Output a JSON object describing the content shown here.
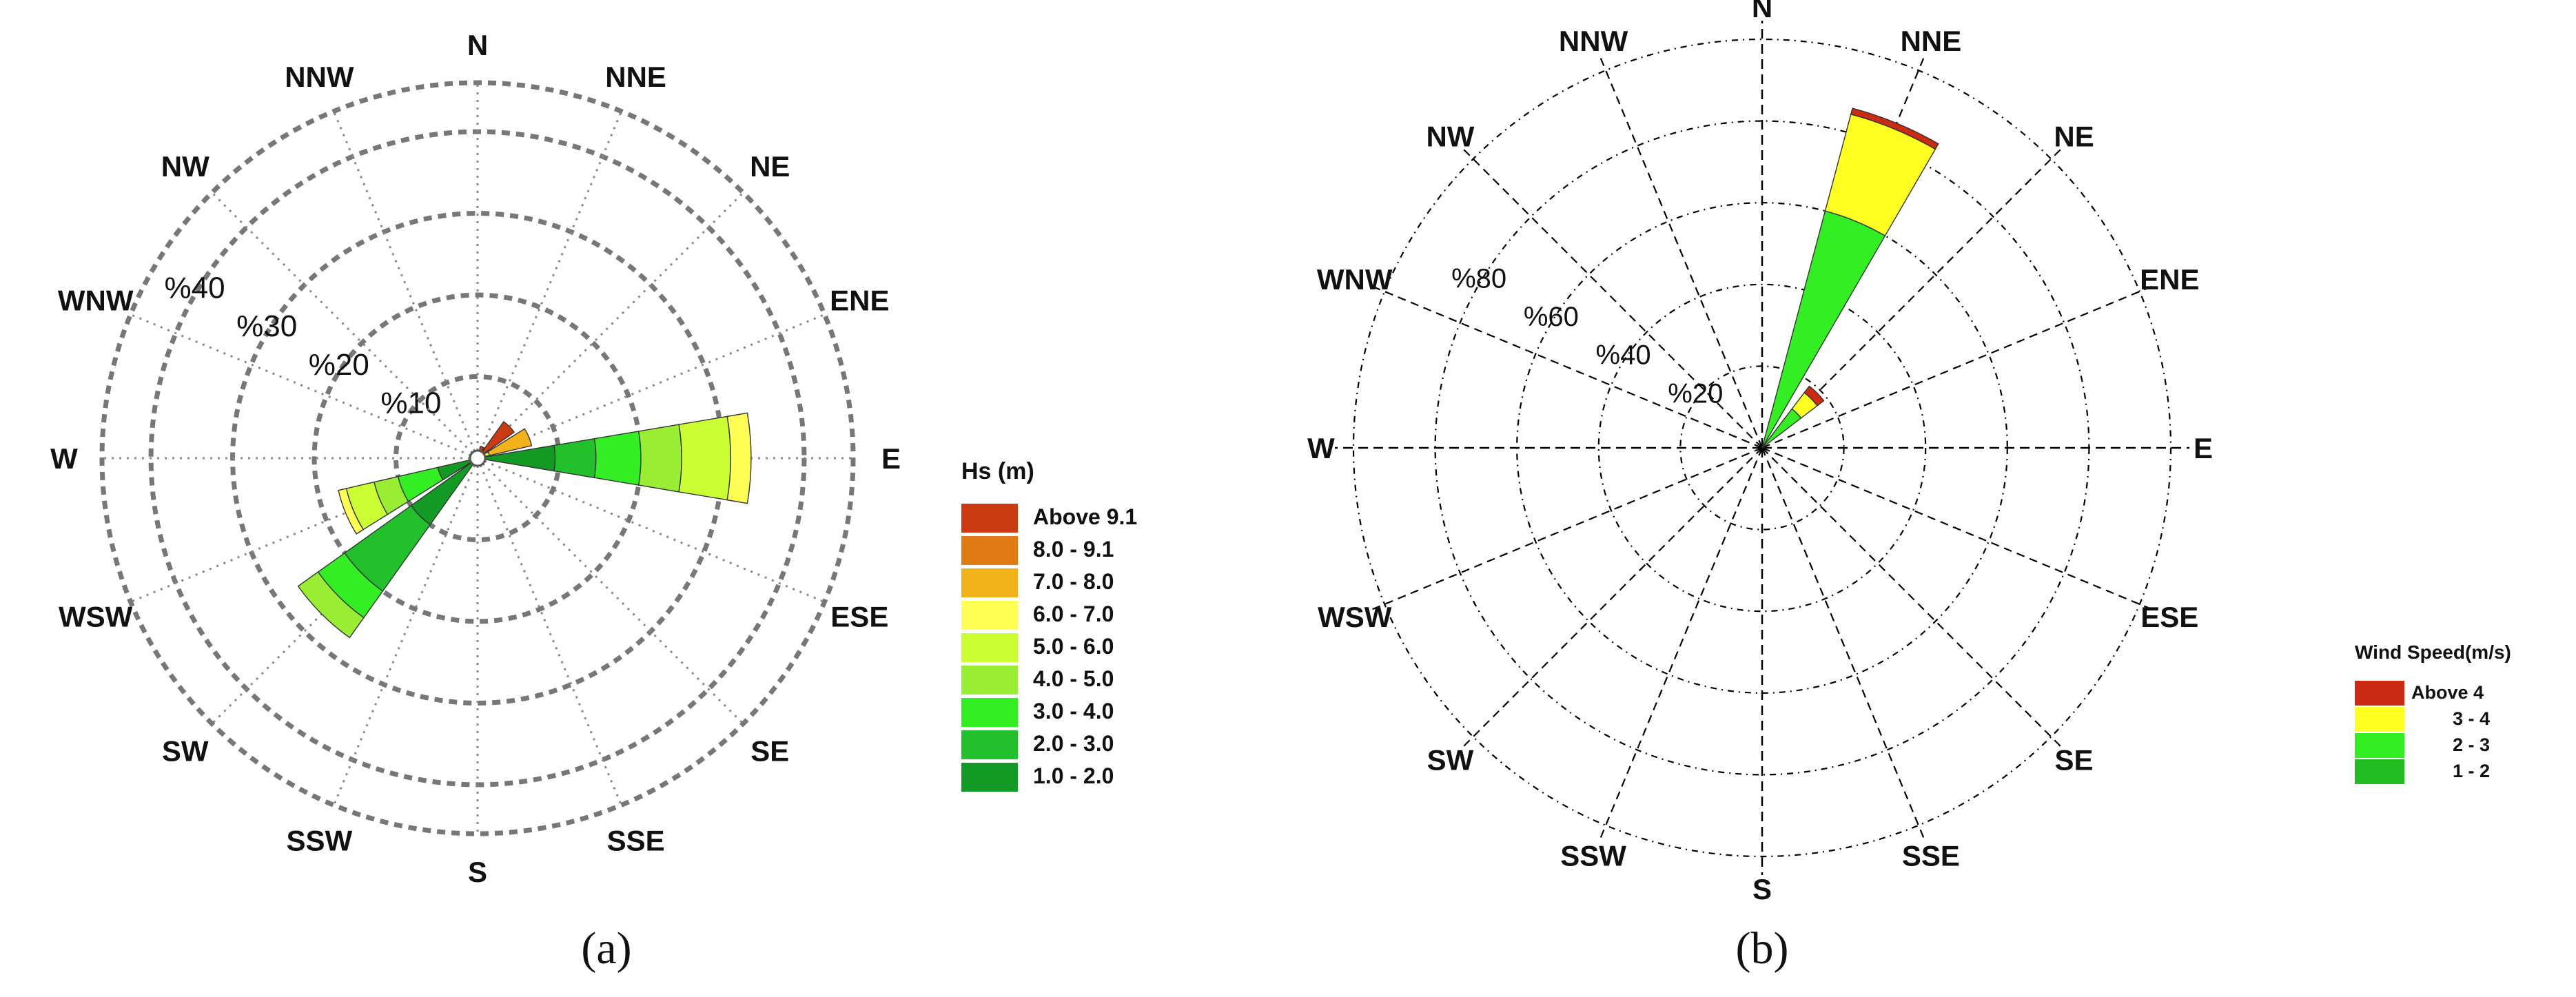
{
  "chart_data": [
    {
      "type": "polar-stacked-bar",
      "panel_label": "(a)",
      "directions": [
        "N",
        "NNE",
        "NE",
        "ENE",
        "E",
        "ESE",
        "SE",
        "SSE",
        "S",
        "SSW",
        "SW",
        "WSW",
        "W",
        "WNW",
        "NW",
        "NNW"
      ],
      "radial_ticks": [
        {
          "value": 10,
          "label": "%10"
        },
        {
          "value": 20,
          "label": "%20"
        },
        {
          "value": 30,
          "label": "%30"
        },
        {
          "value": 40,
          "label": "%40"
        }
      ],
      "rmax": 46,
      "legend_title": "Hs (m)",
      "legend_items": [
        {
          "label": "Above 9.1",
          "color": "#cc3a12"
        },
        {
          "label": "8.0 - 9.1",
          "color": "#e07a12"
        },
        {
          "label": "7.0 - 8.0",
          "color": "#f2b21a"
        },
        {
          "label": "6.0 - 7.0",
          "color": "#ffff55"
        },
        {
          "label": "5.0 - 6.0",
          "color": "#ccff33"
        },
        {
          "label": "4.0 - 5.0",
          "color": "#99ee33"
        },
        {
          "label": "3.0 - 4.0",
          "color": "#33ee22"
        },
        {
          "label": "2.0 - 3.0",
          "color": "#22c02a"
        },
        {
          "label": "1.0 - 2.0",
          "color": "#139a25"
        }
      ],
      "bins_inner_to_outer": [
        "1.0 - 2.0",
        "2.0 - 3.0",
        "3.0 - 4.0",
        "4.0 - 5.0",
        "5.0 - 6.0",
        "6.0 - 7.0",
        "7.0 - 8.0",
        "8.0 - 9.1",
        "Above 9.1"
      ],
      "cumulative_by_direction": {
        "NNE": [
          0,
          0,
          0,
          0,
          0,
          0,
          0,
          0,
          1.5
        ],
        "NE": [
          0,
          0,
          0,
          0,
          0,
          0,
          0.5,
          0.5,
          5.5
        ],
        "ENE": [
          0,
          0,
          0,
          0,
          1.5,
          1.5,
          6.8,
          6.8,
          6.8
        ],
        "E": [
          9.5,
          14.5,
          20,
          25,
          31,
          33.5,
          33.5,
          33.5,
          33.5
        ],
        "WSW": [
          5,
          5,
          10,
          13,
          16.5,
          17.5,
          17.5,
          17.5,
          17.5
        ],
        "SW": [
          10,
          20,
          24,
          27,
          27,
          27,
          27,
          27,
          27
        ],
        "W": [
          0,
          0,
          0,
          0,
          0.6,
          0.6,
          0.6,
          0.6,
          0.6
        ],
        "N": [
          0,
          0,
          0,
          0,
          0.6,
          0.6,
          0.6,
          0.6,
          0.6
        ]
      }
    },
    {
      "type": "polar-stacked-bar",
      "panel_label": "(b)",
      "directions": [
        "N",
        "NNE",
        "NE",
        "ENE",
        "E",
        "ESE",
        "SE",
        "SSE",
        "S",
        "SSW",
        "SW",
        "WSW",
        "W",
        "WNW",
        "NW",
        "NNW"
      ],
      "radial_ticks": [
        {
          "value": 20,
          "label": "%20"
        },
        {
          "value": 40,
          "label": "%40"
        },
        {
          "value": 60,
          "label": "%60"
        },
        {
          "value": 80,
          "label": "%80"
        }
      ],
      "rmax": 100,
      "legend_title": "Wind Speed(m/s)",
      "legend_items": [
        {
          "label": "Above 4",
          "color": "#cc2a12"
        },
        {
          "label": "3 - 4",
          "color": "#ffff22"
        },
        {
          "label": "2 - 3",
          "color": "#33ee22"
        },
        {
          "label": "1 - 2",
          "color": "#22bb22"
        }
      ],
      "bins_inner_to_outer": [
        "1 - 2",
        "2 - 3",
        "3 - 4",
        "Above 4"
      ],
      "cumulative_by_direction": {
        "NNE": [
          0,
          60,
          84.5,
          86
        ],
        "NE": [
          0,
          12,
          17,
          19
        ]
      }
    }
  ]
}
